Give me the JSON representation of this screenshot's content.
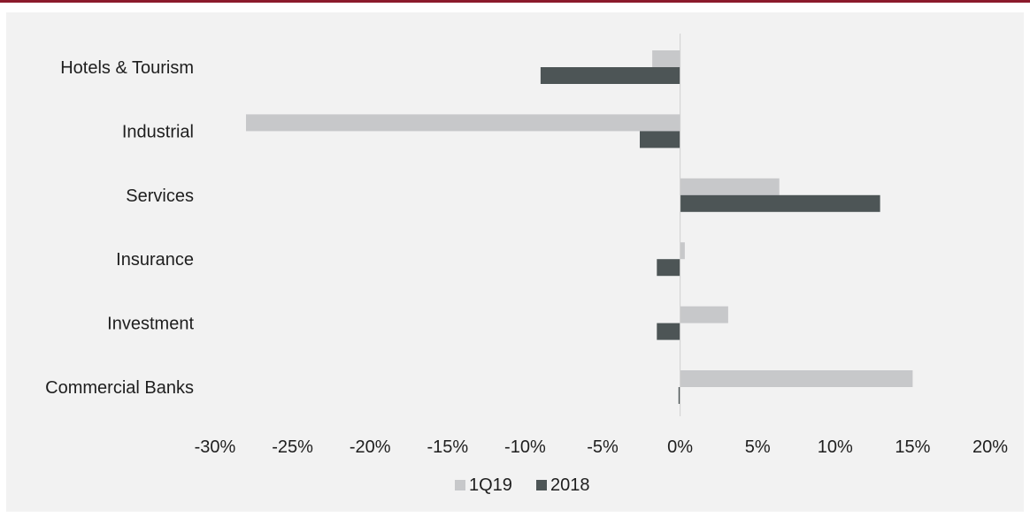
{
  "chart_data": {
    "type": "bar",
    "orientation": "horizontal",
    "categories": [
      "Hotels & Tourism",
      "Industrial",
      "Services",
      "Insurance",
      "Investment",
      "Commercial Banks"
    ],
    "series": [
      {
        "name": "1Q19",
        "color": "#c7c8ca",
        "values": [
          -1.8,
          -28.0,
          6.4,
          0.3,
          3.1,
          15.0
        ]
      },
      {
        "name": "2018",
        "color": "#4d5556",
        "values": [
          -9.0,
          -2.6,
          12.9,
          -1.5,
          -1.5,
          -0.1
        ]
      }
    ],
    "xlim": [
      -30,
      20
    ],
    "xticks": [
      -30,
      -25,
      -20,
      -15,
      -10,
      -5,
      0,
      5,
      10,
      15,
      20
    ],
    "tick_labels": [
      "-30%",
      "-25%",
      "-20%",
      "-15%",
      "-10%",
      "-5%",
      "0%",
      "5%",
      "10%",
      "15%",
      "20%"
    ],
    "grid": false,
    "legend_position": "bottom-center",
    "title": "",
    "xlabel": "",
    "ylabel": ""
  },
  "colors": {
    "background": "#f2f2f2",
    "accent_rule": "#8b1a2b",
    "axis": "#d0d0d0"
  }
}
